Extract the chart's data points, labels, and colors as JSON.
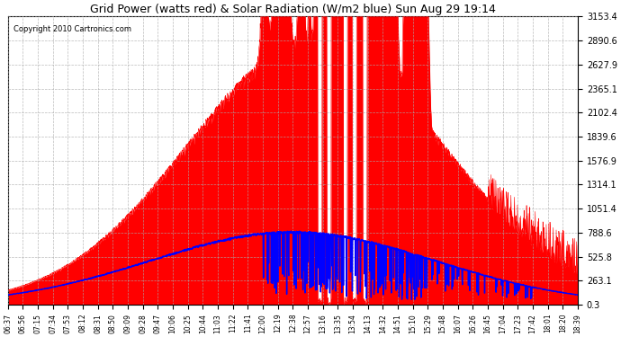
{
  "title": "Grid Power (watts red) & Solar Radiation (W/m2 blue) Sun Aug 29 19:14",
  "copyright": "Copyright 2010 Cartronics.com",
  "yticks": [
    0.3,
    263.1,
    525.8,
    788.6,
    1051.4,
    1314.1,
    1576.9,
    1839.6,
    2102.4,
    2365.1,
    2627.9,
    2890.6,
    3153.4
  ],
  "ymin": 0.3,
  "ymax": 3153.4,
  "xtick_labels": [
    "06:37",
    "06:56",
    "07:15",
    "07:34",
    "07:53",
    "08:12",
    "08:31",
    "08:50",
    "09:09",
    "09:28",
    "09:47",
    "10:06",
    "10:25",
    "10:44",
    "11:03",
    "11:22",
    "11:41",
    "12:00",
    "12:19",
    "12:38",
    "12:57",
    "13:16",
    "13:35",
    "13:54",
    "14:13",
    "14:32",
    "14:51",
    "15:10",
    "15:29",
    "15:48",
    "16:07",
    "16:26",
    "16:45",
    "17:04",
    "17:23",
    "17:42",
    "18:01",
    "18:20",
    "18:39"
  ],
  "bg_color": "#ffffff",
  "grid_color": "#aaaaaa",
  "red_color": "#ff0000",
  "blue_color": "#0000ff",
  "fill_color": "#ff0000"
}
